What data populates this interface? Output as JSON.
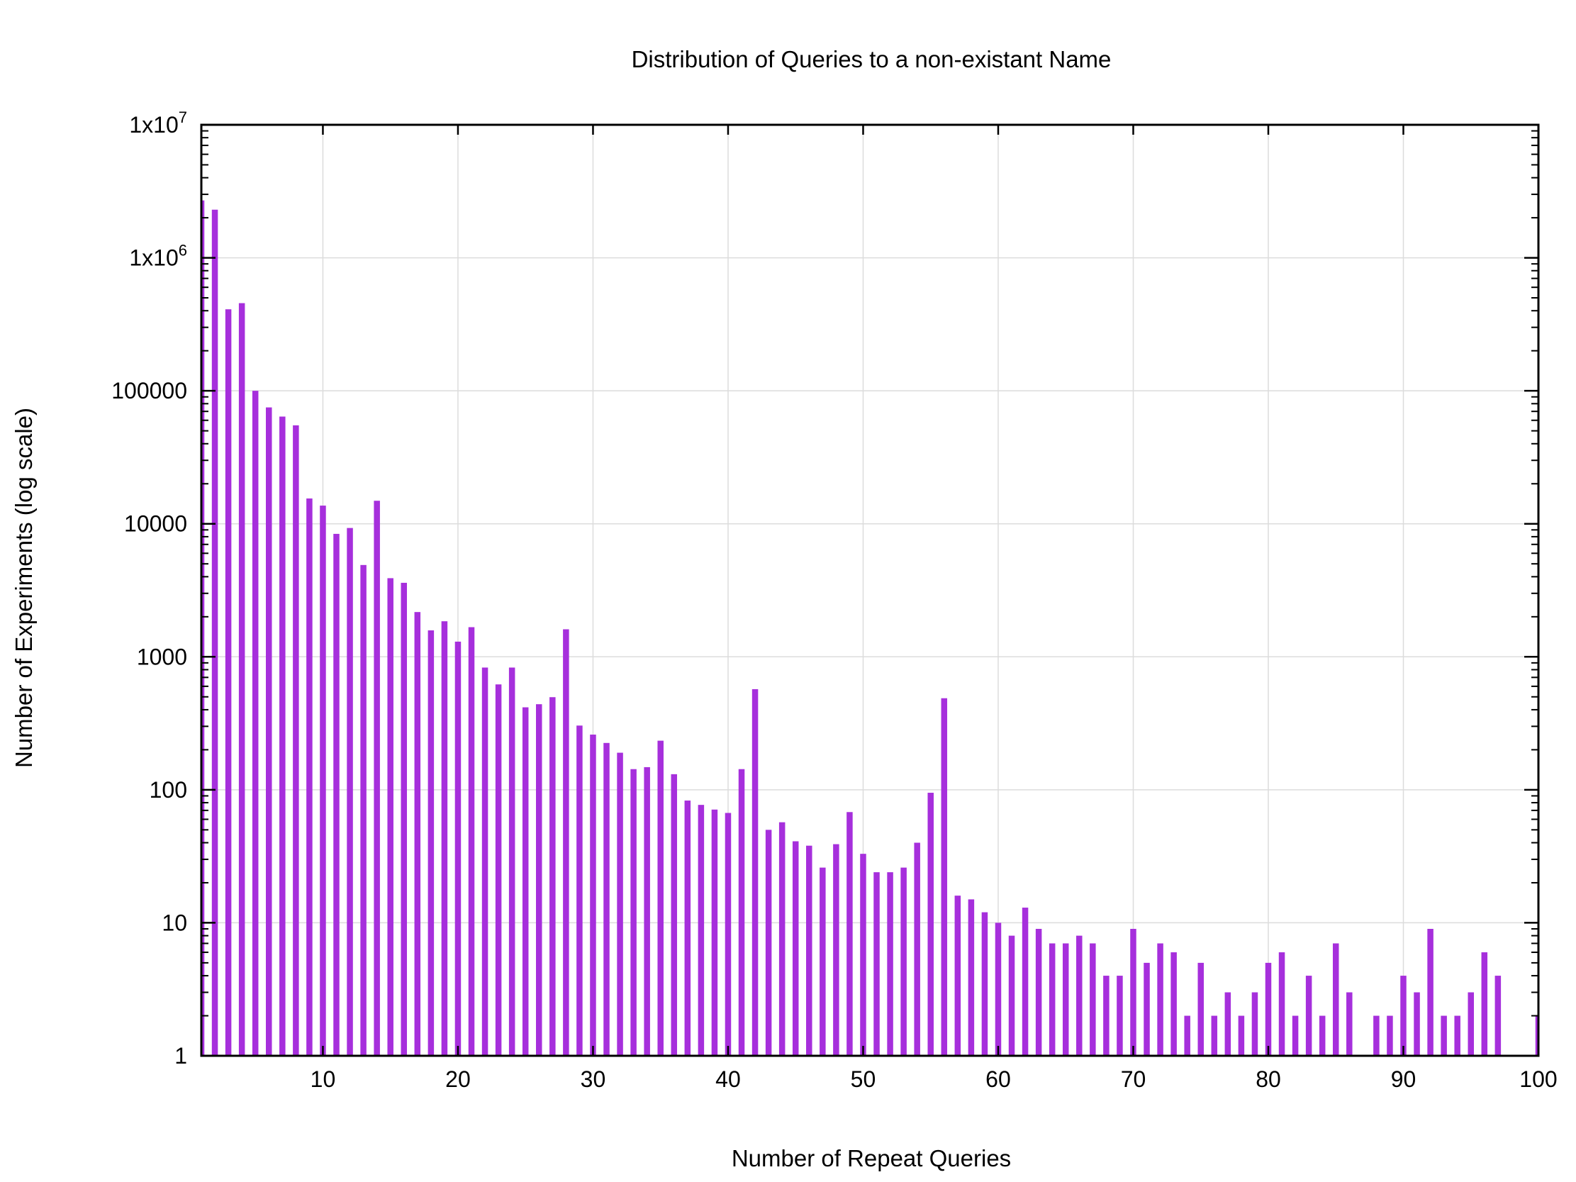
{
  "chart_data": {
    "type": "bar",
    "title": "Distribution of Queries to a non-existant Name",
    "xlabel": "Number of Repeat Queries",
    "ylabel": "Number of Experiments (log scale)",
    "xlim": [
      1,
      100
    ],
    "ylim": [
      1,
      10000000
    ],
    "yscale": "log",
    "grid": true,
    "bar_color": "#a62fdc",
    "x_ticks": [
      10,
      20,
      30,
      40,
      50,
      60,
      70,
      80,
      90,
      100
    ],
    "x_tick_labels": [
      "10",
      "20",
      "30",
      "40",
      "50",
      "60",
      "70",
      "80",
      "90",
      "100"
    ],
    "y_ticks": [
      1,
      10,
      100,
      1000,
      10000,
      100000,
      1000000,
      10000000
    ],
    "y_tick_labels": [
      {
        "base": "1",
        "sup": ""
      },
      {
        "base": "10",
        "sup": ""
      },
      {
        "base": "100",
        "sup": ""
      },
      {
        "base": "1000",
        "sup": ""
      },
      {
        "base": "10000",
        "sup": ""
      },
      {
        "base": "100000",
        "sup": ""
      },
      {
        "base": "1x10",
        "sup": "6"
      },
      {
        "base": "1x10",
        "sup": "7"
      }
    ],
    "x": [
      1,
      2,
      3,
      4,
      5,
      6,
      7,
      8,
      9,
      10,
      11,
      12,
      13,
      14,
      15,
      16,
      17,
      18,
      19,
      20,
      21,
      22,
      23,
      24,
      25,
      26,
      27,
      28,
      29,
      30,
      31,
      32,
      33,
      34,
      35,
      36,
      37,
      38,
      39,
      40,
      41,
      42,
      43,
      44,
      45,
      46,
      47,
      48,
      49,
      50,
      51,
      52,
      53,
      54,
      55,
      56,
      57,
      58,
      59,
      60,
      61,
      62,
      63,
      64,
      65,
      66,
      67,
      68,
      69,
      70,
      71,
      72,
      73,
      74,
      75,
      76,
      77,
      78,
      79,
      80,
      81,
      82,
      83,
      84,
      85,
      86,
      87,
      88,
      89,
      90,
      91,
      92,
      93,
      94,
      95,
      96,
      97,
      98,
      99,
      100
    ],
    "values": [
      2700000,
      2300000,
      410000,
      456000,
      100000,
      75000,
      64000,
      55000,
      15500,
      13700,
      8400,
      9300,
      4900,
      14900,
      3900,
      3600,
      2170,
      1580,
      1850,
      1300,
      1670,
      830,
      620,
      830,
      417,
      440,
      497,
      1610,
      304,
      260,
      225,
      190,
      143,
      148,
      234,
      131,
      83,
      77,
      71,
      67,
      143,
      571,
      50,
      57,
      41,
      38,
      26,
      39,
      68,
      33,
      24,
      24,
      26,
      40,
      95,
      488,
      16,
      15,
      12,
      10,
      8,
      13,
      9,
      7,
      7,
      8,
      7,
      4,
      4,
      9,
      5,
      7,
      6,
      2,
      5,
      2,
      3,
      2,
      3,
      5,
      6,
      2,
      4,
      2,
      7,
      3,
      0,
      2,
      2,
      4,
      3,
      9,
      2,
      2,
      3,
      6,
      4,
      0,
      0,
      2
    ]
  }
}
